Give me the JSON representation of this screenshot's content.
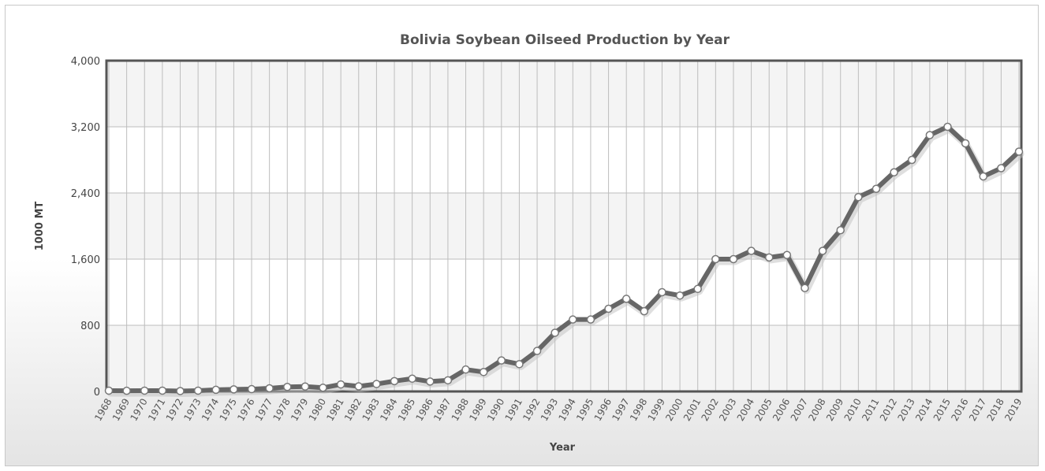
{
  "chart_data": {
    "type": "line",
    "title": "Bolivia Soybean Oilseed Production by Year",
    "xlabel": "Year",
    "ylabel": "1000 MT",
    "ylim": [
      0,
      4000
    ],
    "y_ticks": [
      0,
      800,
      1600,
      2400,
      3200,
      4000
    ],
    "y_tick_labels": [
      "0",
      "800",
      "1,600",
      "2,400",
      "3,200",
      "4,000"
    ],
    "grid": true,
    "legend": "none",
    "colors": {
      "line": "#666666",
      "marker_fill": "#ffffff",
      "marker_stroke": "#777777",
      "plot_border": "#555555"
    },
    "categories": [
      "1968",
      "1969",
      "1970",
      "1971",
      "1972",
      "1973",
      "1974",
      "1975",
      "1976",
      "1977",
      "1978",
      "1979",
      "1980",
      "1981",
      "1982",
      "1983",
      "1984",
      "1985",
      "1986",
      "1987",
      "1988",
      "1989",
      "1990",
      "1991",
      "1992",
      "1993",
      "1994",
      "1995",
      "1996",
      "1997",
      "1998",
      "1999",
      "2000",
      "2001",
      "2002",
      "2003",
      "2004",
      "2005",
      "2006",
      "2007",
      "2008",
      "2009",
      "2010",
      "2011",
      "2012",
      "2013",
      "2014",
      "2015",
      "2016",
      "2017",
      "2018",
      "2019"
    ],
    "series": [
      {
        "values": [
          10,
          8,
          10,
          10,
          5,
          10,
          20,
          25,
          28,
          38,
          55,
          60,
          45,
          85,
          62,
          90,
          125,
          155,
          120,
          135,
          265,
          235,
          375,
          330,
          490,
          710,
          870,
          870,
          1000,
          1120,
          970,
          1200,
          1160,
          1240,
          1600,
          1600,
          1700,
          1620,
          1650,
          1250,
          1700,
          1950,
          2350,
          2450,
          2650,
          2800,
          3100,
          3200,
          3000,
          2600,
          2700,
          2900
        ]
      }
    ]
  }
}
